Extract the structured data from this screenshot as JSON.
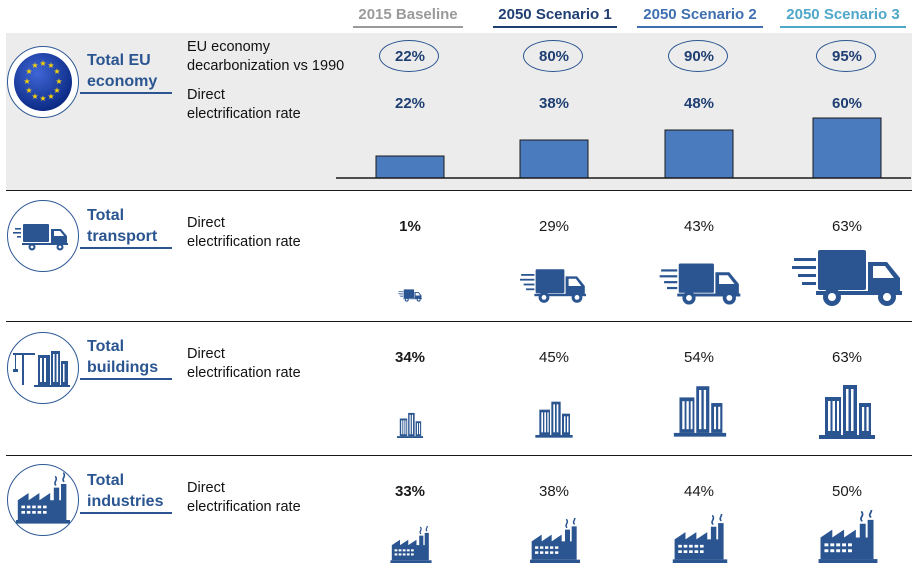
{
  "columns": [
    {
      "label": "2015 Baseline",
      "color": "#9a9a9a"
    },
    {
      "label": "2050 Scenario 1",
      "color": "#1f3f72"
    },
    {
      "label": "2050 Scenario 2",
      "color": "#3f6fb0"
    },
    {
      "label": "2050 Scenario 3",
      "color": "#4fa7c9"
    }
  ],
  "sections": {
    "economy": {
      "title_line1": "Total EU",
      "title_line2": "economy",
      "icon": "eu-flag-icon",
      "metric1_line1": "EU economy",
      "metric1_line2": "decarbonization vs 1990",
      "metric2_line1": "Direct",
      "metric2_line2": "electrification rate",
      "decarb": [
        "22%",
        "80%",
        "90%",
        "95%"
      ],
      "elec": [
        "22%",
        "38%",
        "48%",
        "60%"
      ]
    },
    "transport": {
      "title_line1": "Total",
      "title_line2": "transport",
      "icon": "truck-icon",
      "metric_line1": "Direct",
      "metric_line2": "electrification rate",
      "values": [
        "1%",
        "29%",
        "43%",
        "63%"
      ]
    },
    "buildings": {
      "title_line1": "Total",
      "title_line2": "buildings",
      "icon": "buildings-icon",
      "metric_line1": "Direct",
      "metric_line2": "electrification rate",
      "values": [
        "34%",
        "45%",
        "54%",
        "63%"
      ]
    },
    "industries": {
      "title_line1": "Total",
      "title_line2": "industries",
      "icon": "factory-icon",
      "metric_line1": "Direct",
      "metric_line2": "electrification rate",
      "values": [
        "33%",
        "38%",
        "44%",
        "50%"
      ]
    }
  },
  "chart_data": {
    "type": "bar",
    "categories": [
      "2015 Baseline",
      "2050 Scenario 1",
      "2050 Scenario 2",
      "2050 Scenario 3"
    ],
    "series": [
      {
        "name": "Direct electrification rate",
        "values": [
          22,
          38,
          48,
          60
        ]
      }
    ],
    "ylim": [
      0,
      60
    ],
    "grid": false,
    "bar_color": "#4a7bbf"
  }
}
